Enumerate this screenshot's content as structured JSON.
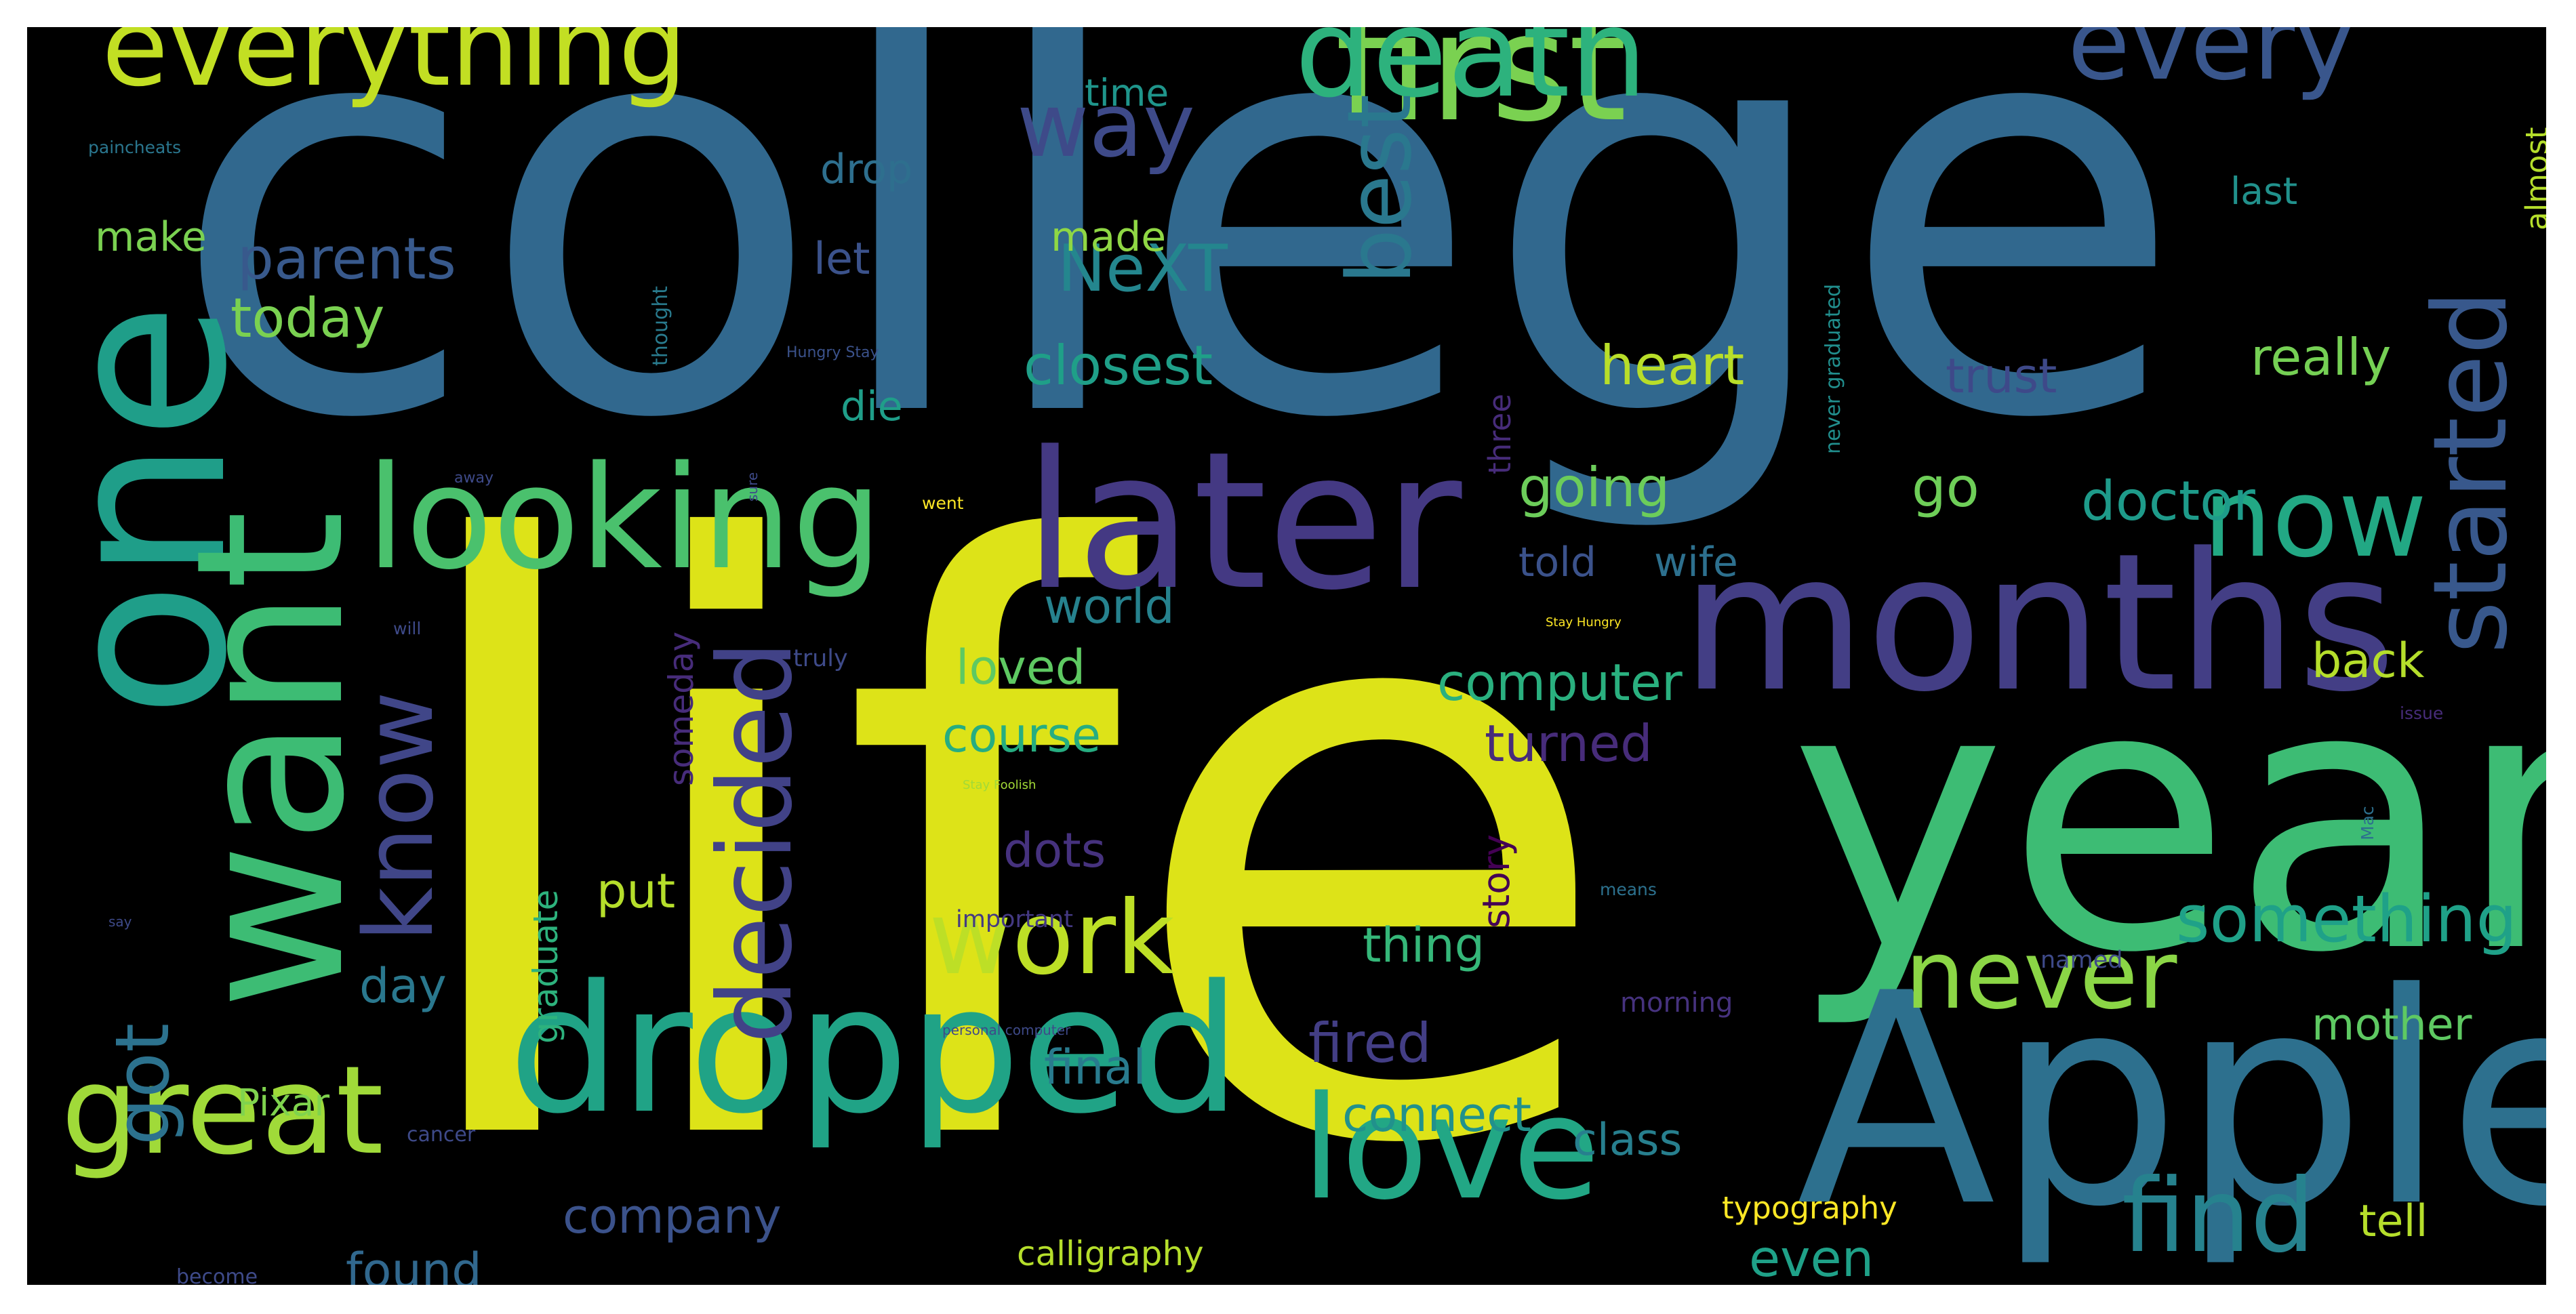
{
  "wordcloud": {
    "words": [
      {
        "text": "college",
        "color": "#31688e"
      },
      {
        "text": "life",
        "color": "#dde318"
      },
      {
        "text": "year",
        "color": "#3dbc74"
      },
      {
        "text": "Apple",
        "color": "#2d708e"
      },
      {
        "text": "one",
        "color": "#1f9e89"
      },
      {
        "text": "want",
        "color": "#3dbc74"
      },
      {
        "text": "months",
        "color": "#433e85"
      },
      {
        "text": "later",
        "color": "#443983"
      },
      {
        "text": "looking",
        "color": "#4ac16d"
      },
      {
        "text": "dropped",
        "color": "#20a386"
      },
      {
        "text": "love",
        "color": "#22a785"
      },
      {
        "text": "first",
        "color": "#7ad151"
      },
      {
        "text": "death",
        "color": "#2db27d"
      },
      {
        "text": "everything",
        "color": "#c2df23"
      },
      {
        "text": "every",
        "color": "#39568c"
      },
      {
        "text": "great",
        "color": "#a0da39"
      },
      {
        "text": "work",
        "color": "#bddf26"
      },
      {
        "text": "never",
        "color": "#8bd646"
      },
      {
        "text": "find",
        "color": "#26828e"
      },
      {
        "text": "started",
        "color": "#38588c"
      },
      {
        "text": "now",
        "color": "#22a884"
      },
      {
        "text": "decided",
        "color": "#414287"
      },
      {
        "text": "know",
        "color": "#404688"
      },
      {
        "text": "way",
        "color": "#3e4a89"
      },
      {
        "text": "best",
        "color": "#2a788e"
      },
      {
        "text": "got",
        "color": "#2c728e"
      },
      {
        "text": "something",
        "color": "#1fa188"
      },
      {
        "text": "NeXT",
        "color": "#24868e"
      },
      {
        "text": "parents",
        "color": "#38598c"
      },
      {
        "text": "today",
        "color": "#7ad151"
      },
      {
        "text": "closest",
        "color": "#1f9f88"
      },
      {
        "text": "heart",
        "color": "#b8de29"
      },
      {
        "text": "trust",
        "color": "#3e4989"
      },
      {
        "text": "really",
        "color": "#75d054"
      },
      {
        "text": "doctor",
        "color": "#1e9b8a"
      },
      {
        "text": "going",
        "color": "#6ccd5a"
      },
      {
        "text": "go",
        "color": "#6ece58"
      },
      {
        "text": "told",
        "color": "#3b528b"
      },
      {
        "text": "wife",
        "color": "#2d708e"
      },
      {
        "text": "computer",
        "color": "#2ab07f"
      },
      {
        "text": "turned",
        "color": "#472c7a"
      },
      {
        "text": "back",
        "color": "#b5de2b"
      },
      {
        "text": "world",
        "color": "#26828e"
      },
      {
        "text": "loved",
        "color": "#5ec962"
      },
      {
        "text": "course",
        "color": "#26ad81"
      },
      {
        "text": "dots",
        "color": "#46327e"
      },
      {
        "text": "put",
        "color": "#b5de2b"
      },
      {
        "text": "day",
        "color": "#2a788e"
      },
      {
        "text": "thing",
        "color": "#35b779"
      },
      {
        "text": "fired",
        "color": "#433e85"
      },
      {
        "text": "final",
        "color": "#297b8e"
      },
      {
        "text": "connect",
        "color": "#21918c"
      },
      {
        "text": "class",
        "color": "#277f8e"
      },
      {
        "text": "company",
        "color": "#3b528b"
      },
      {
        "text": "found",
        "color": "#31688e"
      },
      {
        "text": "even",
        "color": "#1fa188"
      },
      {
        "text": "tell",
        "color": "#b5de2b"
      },
      {
        "text": "mother",
        "color": "#5ec962"
      },
      {
        "text": "calligraphy",
        "color": "#b5de2b"
      },
      {
        "text": "Pixar",
        "color": "#7fd34e"
      },
      {
        "text": "make",
        "color": "#7ad151"
      },
      {
        "text": "made",
        "color": "#8fd744"
      },
      {
        "text": "let",
        "color": "#3b528b"
      },
      {
        "text": "drop",
        "color": "#2e6f8e"
      },
      {
        "text": "time",
        "color": "#1f958b"
      },
      {
        "text": "last",
        "color": "#21918c"
      },
      {
        "text": "die",
        "color": "#1f9e89"
      },
      {
        "text": "almost",
        "color": "#b5de2b"
      },
      {
        "text": "three",
        "color": "#472c7a"
      },
      {
        "text": "graduate",
        "color": "#2db27d"
      },
      {
        "text": "someday",
        "color": "#472c7a"
      },
      {
        "text": "story",
        "color": "#440154"
      },
      {
        "text": "never graduated",
        "color": "#218e8d"
      },
      {
        "text": "thought",
        "color": "#297b8e"
      },
      {
        "text": "paincheats",
        "color": "#2a768e"
      },
      {
        "text": "Hungry Stay",
        "color": "#3b528b"
      },
      {
        "text": "away",
        "color": "#3e4a89"
      },
      {
        "text": "sure",
        "color": "#3e4a89"
      },
      {
        "text": "went",
        "color": "#fde725"
      },
      {
        "text": "will",
        "color": "#3e4a89"
      },
      {
        "text": "truly",
        "color": "#3e4a89"
      },
      {
        "text": "Stay Hungry",
        "color": "#fde725"
      },
      {
        "text": "issue",
        "color": "#472c7a"
      },
      {
        "text": "Stay Foolish",
        "color": "#a2da37"
      },
      {
        "text": "say",
        "color": "#3e4a89"
      },
      {
        "text": "important",
        "color": "#443983"
      },
      {
        "text": "means",
        "color": "#2c718e"
      },
      {
        "text": "Mac",
        "color": "#2d708e"
      },
      {
        "text": "named",
        "color": "#3e4a89"
      },
      {
        "text": "morning",
        "color": "#46327e"
      },
      {
        "text": "personal computer",
        "color": "#3e4a89"
      },
      {
        "text": "cancer",
        "color": "#3e4a89"
      },
      {
        "text": "typography",
        "color": "#fde725"
      },
      {
        "text": "become",
        "color": "#3e4a89"
      }
    ]
  }
}
